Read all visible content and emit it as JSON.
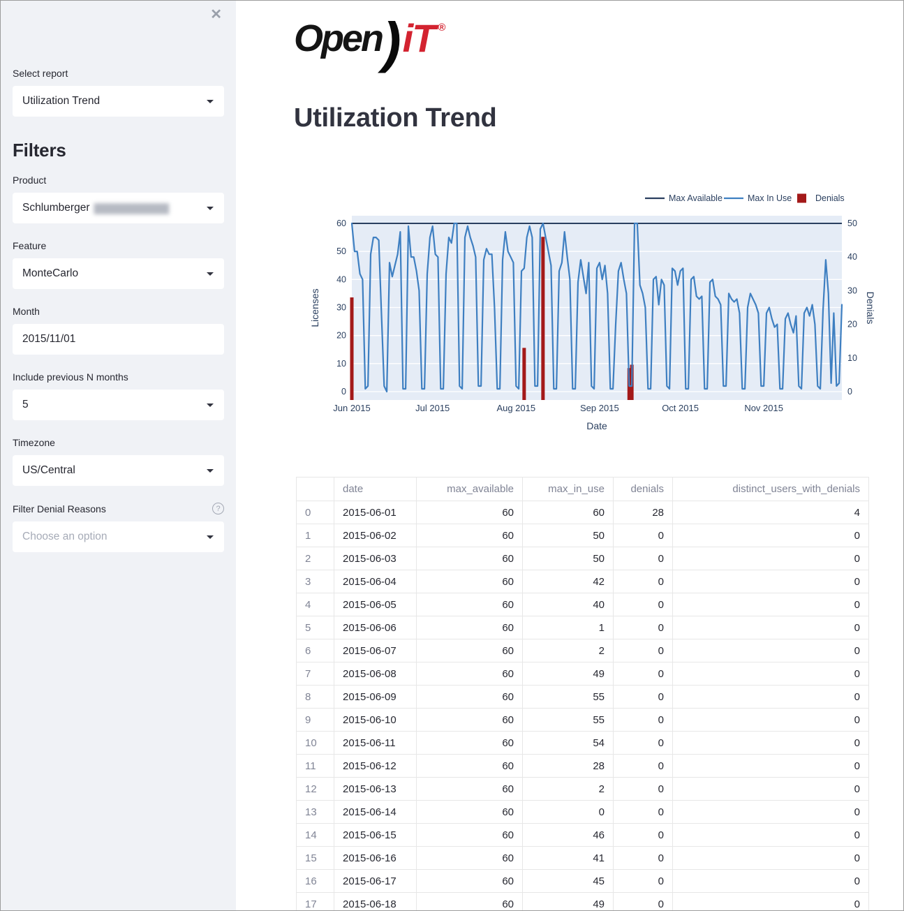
{
  "icons": {
    "close-icon": "✕",
    "help-icon": "?",
    "chevron-down-icon": "▾"
  },
  "colors": {
    "sidebar_bg": "#f0f2f6",
    "accent_blue": "#3e7fc1",
    "navy": "#2a3f5f",
    "denial_red": "#a31919",
    "logo_red": "#d32330",
    "plot_bg": "#e5ecf6"
  },
  "sidebar": {
    "select_report": {
      "label": "Select report",
      "value": "Utilization Trend"
    },
    "filters_heading": "Filters",
    "product": {
      "label": "Product",
      "value": "Schlumberger",
      "redacted": "█████████████"
    },
    "feature": {
      "label": "Feature",
      "value": "MonteCarlo"
    },
    "month": {
      "label": "Month",
      "value": "2015/11/01"
    },
    "n_months": {
      "label": "Include previous N months",
      "value": "5"
    },
    "timezone": {
      "label": "Timezone",
      "value": "US/Central"
    },
    "denial_reasons": {
      "label": "Filter Denial Reasons",
      "placeholder": "Choose an option"
    }
  },
  "main": {
    "logo": {
      "open": "Open",
      "paren": ")",
      "it": "iT",
      "reg": "®"
    },
    "title": "Utilization Trend"
  },
  "chart_data": {
    "type": "line+bar",
    "xlabel": "Date",
    "ylabel_left": "Licenses",
    "ylabel_right": "Denials",
    "x_start_date": "2015-06-01",
    "x_end_date": "2015-11-30",
    "x_days": 183,
    "x_ticks": [
      {
        "label": "Jun 2015",
        "day": 0
      },
      {
        "label": "Jul 2015",
        "day": 30
      },
      {
        "label": "Aug 2015",
        "day": 61
      },
      {
        "label": "Sep 2015",
        "day": 92
      },
      {
        "label": "Oct 2015",
        "day": 122
      },
      {
        "label": "Nov 2015",
        "day": 153
      }
    ],
    "yaxis_left": {
      "min": 0,
      "max": 60,
      "ticks": [
        0,
        10,
        20,
        30,
        40,
        50,
        60
      ]
    },
    "yaxis_right": {
      "min": 0,
      "max": 50,
      "ticks": [
        0,
        10,
        20,
        30,
        40,
        50
      ]
    },
    "legend_position": "top-right",
    "grid": "horizontal-white",
    "plot_bg": "#e5ecf6",
    "series": [
      {
        "name": "Max Available",
        "type": "line",
        "color": "#2a3f5f",
        "constant_value": 60
      },
      {
        "name": "Max In Use",
        "type": "line",
        "color": "#3e7fc1",
        "values": [
          60,
          50,
          50,
          42,
          40,
          1,
          2,
          49,
          55,
          55,
          54,
          28,
          2,
          0,
          46,
          41,
          45,
          49,
          57,
          1,
          1,
          59,
          48,
          48,
          43,
          36,
          1,
          1,
          42,
          55,
          59,
          49,
          48,
          1,
          1,
          42,
          55,
          53,
          60,
          60,
          2,
          1,
          55,
          59,
          55,
          52,
          48,
          2,
          2,
          47,
          51,
          49,
          49,
          30,
          1,
          1,
          47,
          57,
          50,
          48,
          46,
          2,
          1,
          43,
          44,
          55,
          59,
          55,
          2,
          2,
          58,
          60,
          55,
          50,
          45,
          1,
          1,
          43,
          46,
          57,
          48,
          40,
          1,
          1,
          39,
          47,
          41,
          35,
          46,
          2,
          1,
          44,
          46,
          40,
          45,
          35,
          1,
          1,
          24,
          43,
          46,
          40,
          35,
          2,
          2,
          60,
          60,
          38,
          35,
          30,
          1,
          1,
          40,
          41,
          31,
          40,
          38,
          2,
          1,
          44,
          43,
          38,
          43,
          44,
          1,
          1,
          40,
          41,
          34,
          33,
          34,
          1,
          1,
          39,
          40,
          34,
          33,
          31,
          2,
          2,
          35,
          33,
          32,
          33,
          28,
          1,
          1,
          30,
          35,
          33,
          31,
          28,
          2,
          2,
          28,
          30,
          26,
          23,
          24,
          1,
          1,
          26,
          28,
          24,
          21,
          27,
          2,
          1,
          28,
          30,
          27,
          31,
          24,
          2,
          1,
          29,
          47,
          35,
          3,
          28,
          2,
          3,
          31
        ]
      },
      {
        "name": "Denials",
        "type": "bar",
        "color": "#a31919",
        "points": [
          {
            "day": 0,
            "date": "2015-06-01",
            "value": 28
          },
          {
            "day": 64,
            "date": "2015-08-04",
            "value": 13
          },
          {
            "day": 71,
            "date": "2015-08-11",
            "value": 46
          },
          {
            "day": 103,
            "date": "2015-09-12",
            "value": 7
          },
          {
            "day": 104,
            "date": "2015-09-13",
            "value": 8
          }
        ]
      }
    ]
  },
  "table": {
    "columns": [
      "",
      "date",
      "max_available",
      "max_in_use",
      "denials",
      "distinct_users_with_denials"
    ],
    "rows": [
      [
        "0",
        "2015-06-01",
        "60",
        "60",
        "28",
        "4"
      ],
      [
        "1",
        "2015-06-02",
        "60",
        "50",
        "0",
        "0"
      ],
      [
        "2",
        "2015-06-03",
        "60",
        "50",
        "0",
        "0"
      ],
      [
        "3",
        "2015-06-04",
        "60",
        "42",
        "0",
        "0"
      ],
      [
        "4",
        "2015-06-05",
        "60",
        "40",
        "0",
        "0"
      ],
      [
        "5",
        "2015-06-06",
        "60",
        "1",
        "0",
        "0"
      ],
      [
        "6",
        "2015-06-07",
        "60",
        "2",
        "0",
        "0"
      ],
      [
        "7",
        "2015-06-08",
        "60",
        "49",
        "0",
        "0"
      ],
      [
        "8",
        "2015-06-09",
        "60",
        "55",
        "0",
        "0"
      ],
      [
        "9",
        "2015-06-10",
        "60",
        "55",
        "0",
        "0"
      ],
      [
        "10",
        "2015-06-11",
        "60",
        "54",
        "0",
        "0"
      ],
      [
        "11",
        "2015-06-12",
        "60",
        "28",
        "0",
        "0"
      ],
      [
        "12",
        "2015-06-13",
        "60",
        "2",
        "0",
        "0"
      ],
      [
        "13",
        "2015-06-14",
        "60",
        "0",
        "0",
        "0"
      ],
      [
        "14",
        "2015-06-15",
        "60",
        "46",
        "0",
        "0"
      ],
      [
        "15",
        "2015-06-16",
        "60",
        "41",
        "0",
        "0"
      ],
      [
        "16",
        "2015-06-17",
        "60",
        "45",
        "0",
        "0"
      ],
      [
        "17",
        "2015-06-18",
        "60",
        "49",
        "0",
        "0"
      ]
    ]
  }
}
